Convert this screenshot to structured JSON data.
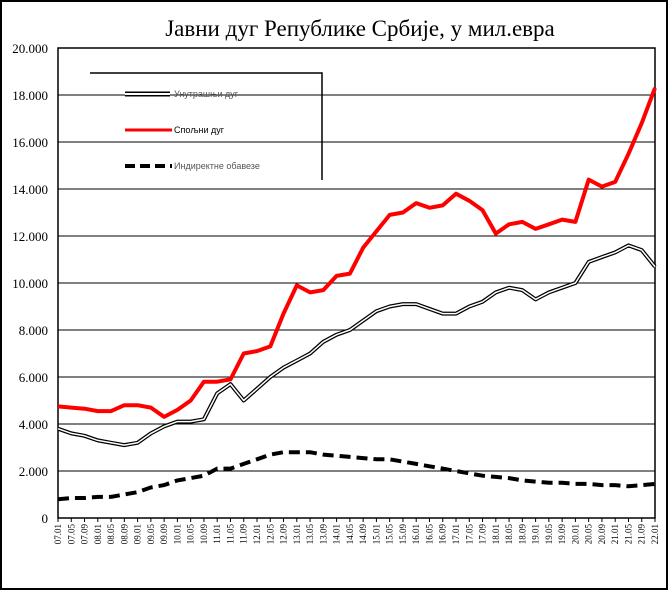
{
  "chart_data": {
    "type": "line",
    "title": "Јавни дуг Републике Србије, у мил.евра",
    "xlabel": "",
    "ylabel": "",
    "ylim": [
      0,
      20000
    ],
    "yticks": [
      "0",
      "2.000",
      "4.000",
      "6.000",
      "8.000",
      "10.000",
      "12.000",
      "14.000",
      "16.000",
      "18.000",
      "20.000"
    ],
    "grid": true,
    "legend_position": "top-left",
    "x": [
      "07.01",
      "07.05",
      "07.09",
      "08.01",
      "08.05",
      "08.09",
      "09.01",
      "09.05",
      "09.09",
      "10.01",
      "10.05",
      "10.09",
      "11.01",
      "11.05",
      "11.09",
      "12.01",
      "12.05",
      "12.09",
      "13.01",
      "13.05",
      "13.09",
      "14.01",
      "14.05",
      "14.09",
      "15.01",
      "15.05",
      "15.09",
      "16.01",
      "16.05",
      "16.09",
      "17.01",
      "17.05",
      "17.09",
      "18.01",
      "18.05",
      "18.09",
      "19.01",
      "19.05",
      "19.09",
      "20.01",
      "20.05",
      "20.09",
      "21.01",
      "21.05",
      "21.09",
      "22.01"
    ],
    "series": [
      {
        "name": "Унутрашњи дуг",
        "color": "#000000",
        "style": "double",
        "values": [
          3800,
          3600,
          3500,
          3300,
          3200,
          3100,
          3200,
          3600,
          3900,
          4100,
          4100,
          4200,
          5300,
          5700,
          5000,
          5500,
          6000,
          6400,
          6700,
          7000,
          7500,
          7800,
          8000,
          8400,
          8800,
          9000,
          9100,
          9100,
          8900,
          8700,
          8700,
          9000,
          9200,
          9600,
          9800,
          9700,
          9300,
          9600,
          9800,
          10000,
          10900,
          11100,
          11300,
          11600,
          11400,
          10700
        ]
      },
      {
        "name": "Спољни дуг",
        "color": "#ff0000",
        "style": "solid",
        "values": [
          4750,
          4700,
          4650,
          4550,
          4550,
          4800,
          4800,
          4700,
          4300,
          4600,
          5000,
          5800,
          5800,
          5900,
          7000,
          7100,
          7300,
          8700,
          9900,
          9600,
          9700,
          10300,
          10400,
          11500,
          12200,
          12900,
          13000,
          13400,
          13200,
          13300,
          13800,
          13500,
          13100,
          12100,
          12500,
          12600,
          12300,
          12500,
          12700,
          12600,
          14400,
          14100,
          14300,
          15500,
          16800,
          18300
        ]
      },
      {
        "name": "Индиректне обавезе",
        "color": "#000000",
        "style": "dashed",
        "values": [
          800,
          850,
          850,
          900,
          900,
          1000,
          1100,
          1300,
          1400,
          1600,
          1700,
          1800,
          2100,
          2100,
          2300,
          2500,
          2700,
          2800,
          2800,
          2800,
          2700,
          2650,
          2600,
          2550,
          2500,
          2500,
          2400,
          2300,
          2200,
          2100,
          2000,
          1900,
          1800,
          1750,
          1700,
          1600,
          1550,
          1500,
          1500,
          1450,
          1450,
          1400,
          1400,
          1350,
          1400,
          1450
        ]
      }
    ]
  }
}
